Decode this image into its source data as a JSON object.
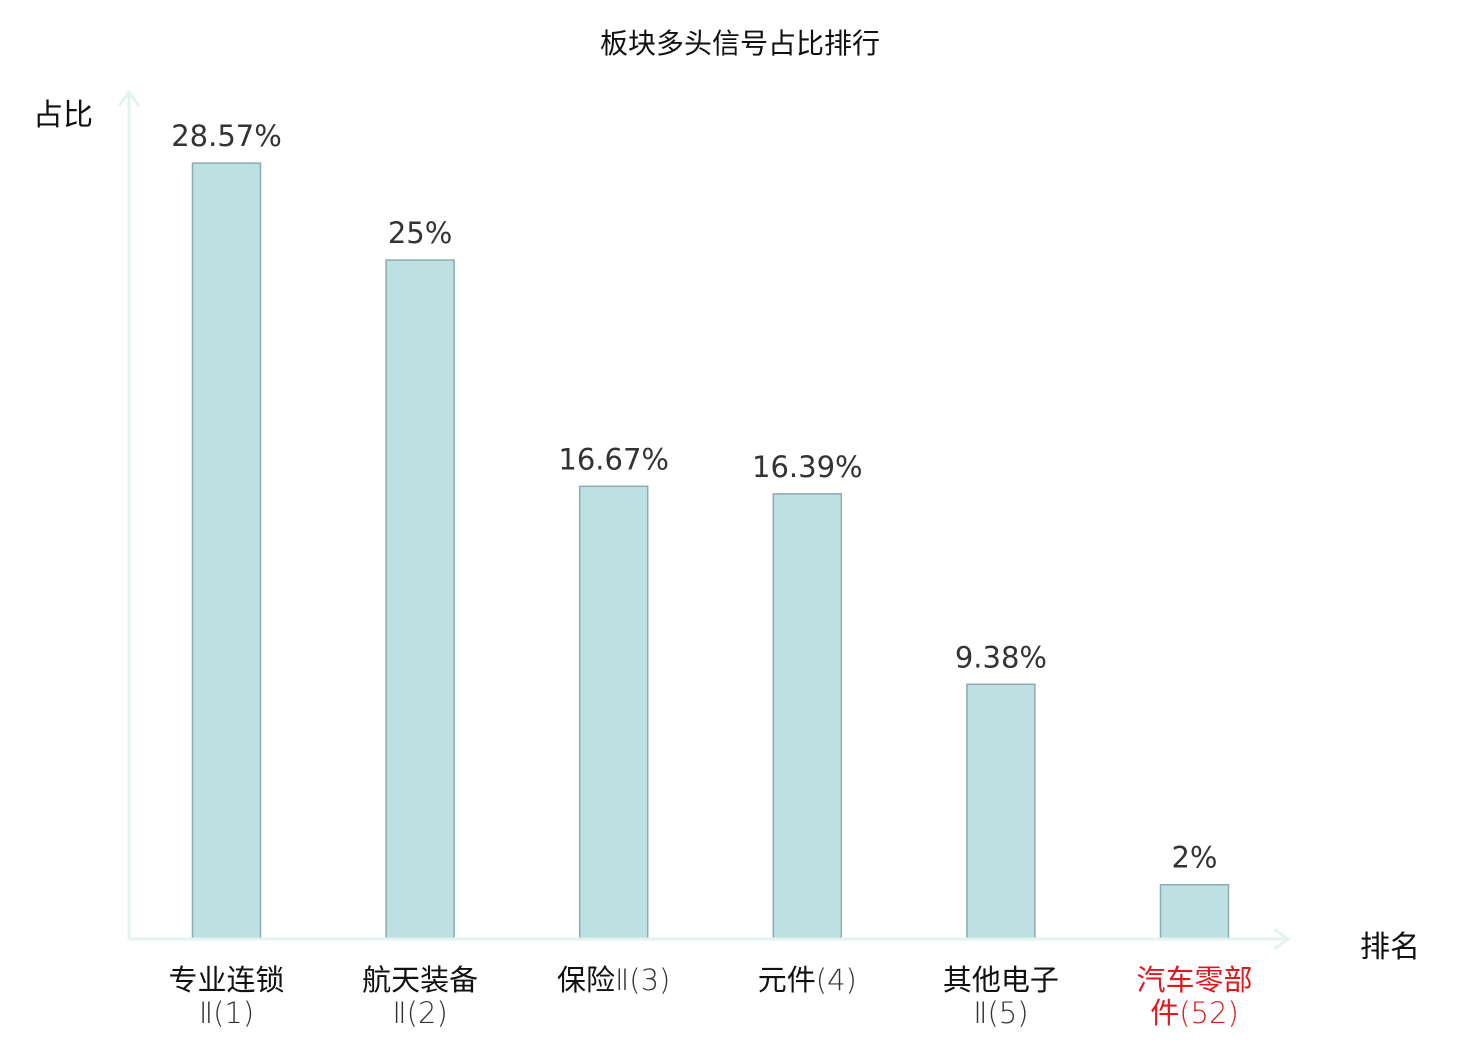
{
  "chart_data": {
    "type": "bar",
    "title": "板块多头信号占比排行",
    "ylabel": "占比",
    "xlabel": "排名",
    "categories": [
      {
        "line1": "专业连锁",
        "line2": "Ⅱ(1)",
        "highlight": false
      },
      {
        "line1": "航天装备",
        "line2": "Ⅱ(2)",
        "highlight": false
      },
      {
        "line1": "保险",
        "line2": "Ⅱ(3)",
        "highlight": false
      },
      {
        "line1": "元件",
        "line2": "(4)",
        "highlight": false
      },
      {
        "line1": "其他电子",
        "line2": "Ⅱ(5)",
        "highlight": false
      },
      {
        "line1": "汽车零部",
        "line2": "件(52)",
        "highlight": true
      }
    ],
    "values": [
      28.57,
      25,
      16.67,
      16.39,
      9.38,
      2
    ],
    "value_labels": [
      "28.57%",
      "25%",
      "16.67%",
      "16.39%",
      "9.38%",
      "2%"
    ],
    "ylim": [
      0,
      30.6
    ],
    "grid": false,
    "colors": {
      "bar_fill": "#bde0e2",
      "bar_stroke": "#8faaae",
      "axis": "#e3f3f1",
      "highlight": "#e0191f"
    }
  }
}
